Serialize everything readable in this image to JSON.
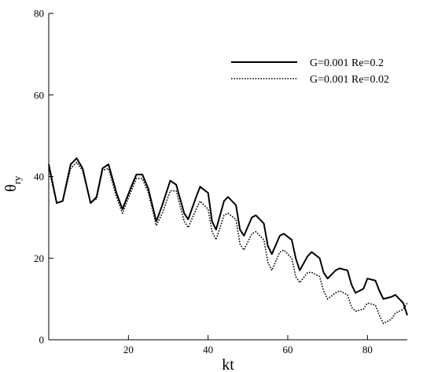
{
  "chart_data": {
    "type": "line",
    "title": "",
    "xlabel": "kt",
    "ylabel_main": "θ",
    "ylabel_sub": "ry",
    "xlim": [
      0,
      90
    ],
    "ylim": [
      0,
      80
    ],
    "xticks": [
      20,
      40,
      60,
      80
    ],
    "yticks": [
      0,
      20,
      40,
      60,
      80
    ],
    "xtick_labels": [
      "20",
      "40",
      "60",
      "80"
    ],
    "ytick_labels": [
      "0",
      "20",
      "40",
      "60",
      "80"
    ],
    "grid": false,
    "legend_position": "top-right",
    "series": [
      {
        "name": "G=0.001 Re=0.2",
        "style": "solid",
        "color": "#000000",
        "x": [
          0,
          2,
          3.5,
          5.5,
          7,
          8.5,
          10.5,
          12,
          13.5,
          15,
          17,
          18.5,
          20.5,
          22,
          23.5,
          25,
          27,
          28.5,
          30.5,
          32,
          34,
          35,
          37,
          38,
          40,
          41,
          42,
          44,
          45,
          47,
          48,
          49,
          51,
          52,
          54,
          55,
          56,
          58,
          59,
          61,
          62,
          63,
          65,
          66,
          68,
          69,
          70,
          72,
          73,
          75,
          76,
          77,
          79,
          80,
          82,
          83,
          84,
          86,
          87,
          89,
          90
        ],
        "y": [
          43,
          33.5,
          34,
          43,
          44.5,
          42,
          33.5,
          35,
          42,
          43,
          36,
          32,
          37,
          40.5,
          40.5,
          37,
          29,
          33,
          39,
          38,
          31,
          29.5,
          35,
          37.5,
          36,
          29,
          27,
          34,
          35,
          33,
          27,
          25.5,
          30,
          30.5,
          28.5,
          23,
          21,
          25.5,
          26,
          24.5,
          20,
          17,
          20.5,
          21.5,
          20,
          16.5,
          15,
          17,
          17.5,
          17,
          13.5,
          11.5,
          12.5,
          15,
          14.5,
          12,
          10,
          10.5,
          11,
          9,
          6
        ]
      },
      {
        "name": "G=0.001 Re=0.02",
        "style": "dotted",
        "color": "#000000",
        "x": [
          0,
          2,
          3.5,
          5.5,
          7,
          8.5,
          10.5,
          12,
          13.5,
          15,
          17,
          18.5,
          20.5,
          22,
          23.5,
          25,
          27,
          28.5,
          30.5,
          32,
          34,
          35,
          37,
          38,
          40,
          41,
          42,
          44,
          45,
          47,
          48,
          49,
          51,
          52,
          54,
          55,
          56,
          58,
          59,
          61,
          62,
          63,
          65,
          66,
          68,
          69,
          70,
          72,
          73,
          75,
          76,
          77,
          79,
          80,
          82,
          83,
          84,
          86,
          87,
          89,
          90
        ],
        "y": [
          42,
          33.5,
          34,
          42,
          43.5,
          41.5,
          33.5,
          34.5,
          41.5,
          42,
          35,
          31,
          36,
          39.5,
          39.5,
          36,
          28,
          31,
          36.5,
          36.5,
          29,
          27.5,
          32,
          34,
          32,
          26.5,
          24.5,
          30.5,
          31,
          29.5,
          23.5,
          22,
          26,
          26.5,
          24.5,
          19,
          17,
          21.5,
          22,
          20,
          15.5,
          14,
          16.5,
          16.5,
          15.5,
          12,
          10,
          11.5,
          12,
          11,
          8,
          7,
          7.5,
          9,
          8.5,
          6,
          4,
          5,
          6.5,
          7.5,
          9
        ]
      }
    ]
  }
}
